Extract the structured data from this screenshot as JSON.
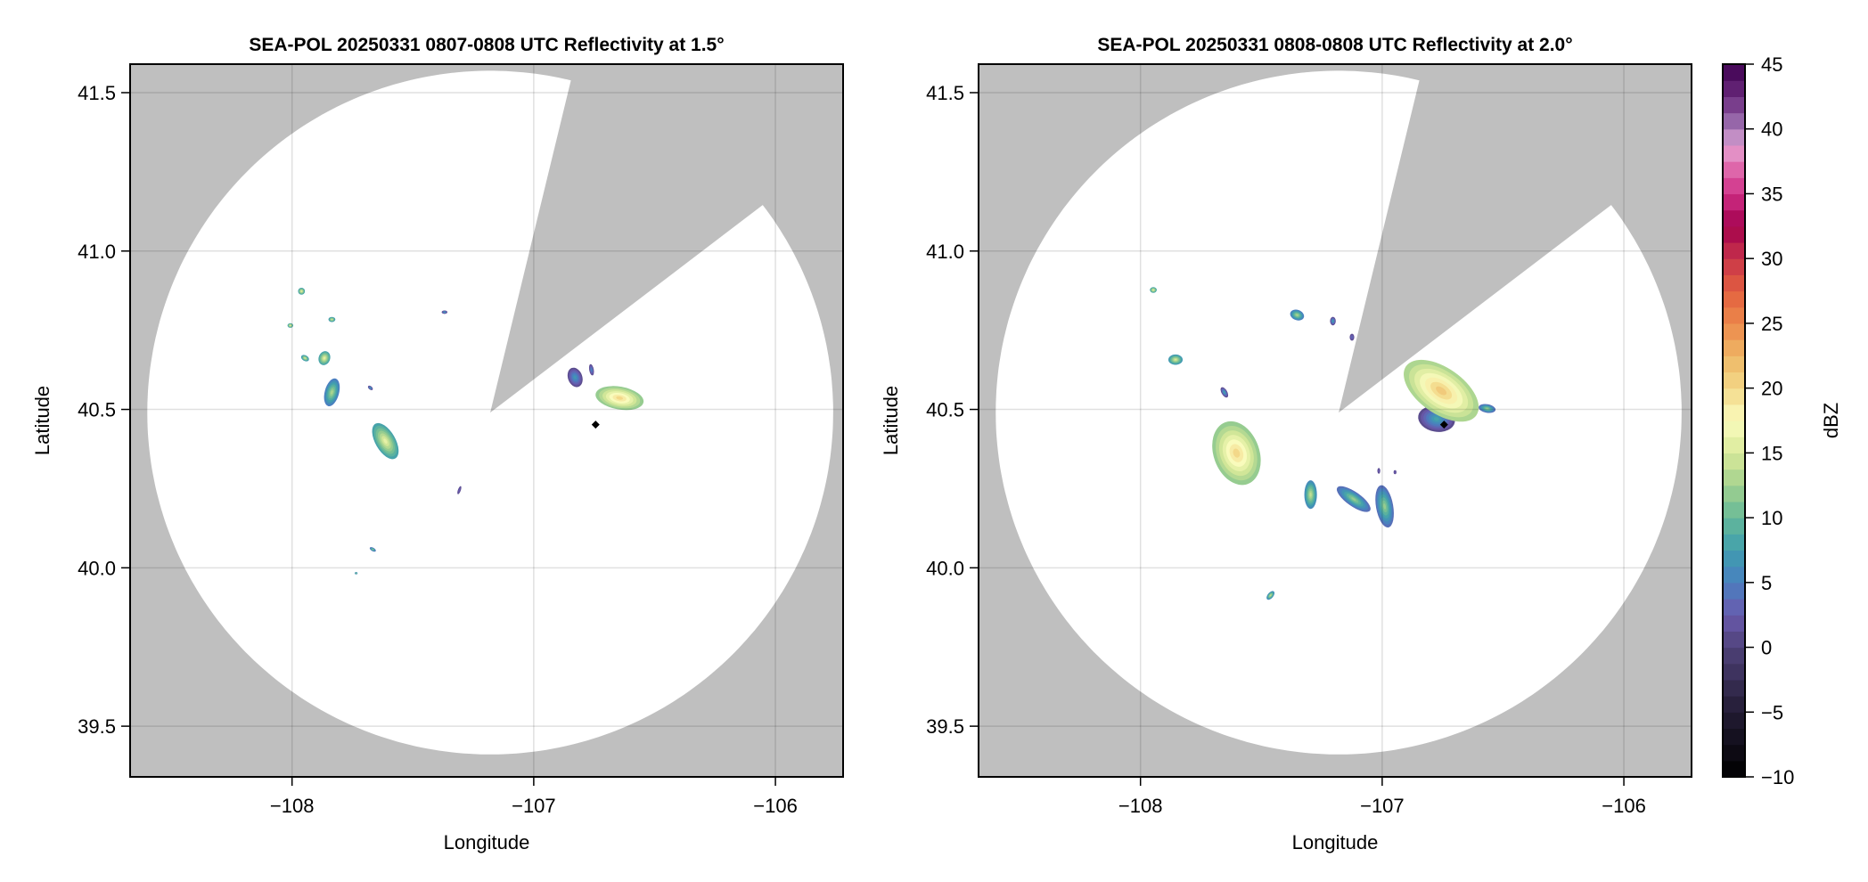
{
  "colors": {
    "no_coverage": "#bfbfbf",
    "coverage": "#ffffff",
    "grid": "#000000",
    "marker": "#000000"
  },
  "colormap": {
    "label": "dBZ",
    "range": [
      -10,
      45
    ],
    "ticks": [
      -10,
      -5,
      0,
      5,
      10,
      15,
      20,
      25,
      30,
      35,
      40,
      45
    ],
    "tick_labels": [
      "−10",
      "−5",
      "0",
      "5",
      "10",
      "15",
      "20",
      "25",
      "30",
      "35",
      "40",
      "45"
    ],
    "stops": [
      [
        -10,
        "#000000"
      ],
      [
        -5,
        "#221b33"
      ],
      [
        0,
        "#4f4279"
      ],
      [
        2.5,
        "#6a5aad"
      ],
      [
        5,
        "#4a7fc0"
      ],
      [
        7.5,
        "#3f9eae"
      ],
      [
        10,
        "#66b998"
      ],
      [
        12.5,
        "#a2d18e"
      ],
      [
        15,
        "#d8e99a"
      ],
      [
        17.5,
        "#fbfcbe"
      ],
      [
        20,
        "#f3d889"
      ],
      [
        22.5,
        "#eeb665"
      ],
      [
        25,
        "#ec894b"
      ],
      [
        27.5,
        "#e2603f"
      ],
      [
        30,
        "#c8344a"
      ],
      [
        32.5,
        "#a2004d"
      ],
      [
        35,
        "#cf2f86"
      ],
      [
        37.5,
        "#e378b6"
      ],
      [
        38.7,
        "#e3a4d2"
      ],
      [
        40,
        "#a47ab8"
      ],
      [
        42.5,
        "#6b2a7d"
      ],
      [
        45,
        "#3f0051"
      ]
    ]
  },
  "chart_data": [
    {
      "type": "heatmap",
      "title": "SEA-POL 20250331 0807-0808 UTC Reflectivity at 1.5°",
      "xlabel": "Longitude",
      "ylabel": "Latitude",
      "xlim": [
        -108.67,
        -105.72
      ],
      "ylim": [
        39.34,
        41.59
      ],
      "xticks": [
        -108,
        -107,
        -106
      ],
      "xtick_labels": [
        "−108",
        "−107",
        "−106"
      ],
      "yticks": [
        39.5,
        40.0,
        40.5,
        41.0,
        41.5
      ],
      "ytick_labels": [
        "39.5",
        "40.0",
        "40.5",
        "41.0",
        "41.5"
      ],
      "grid": true,
      "radar": {
        "lon": -107.18,
        "lat": 40.49,
        "range_km": 120,
        "blocked_azimuth_deg": [
          13.7,
          52.6
        ]
      },
      "marker": {
        "lon": -106.744,
        "lat": 40.452,
        "shape": "diamond"
      },
      "echoes": [
        {
          "lon": -106.645,
          "lat": 40.536,
          "a_km": 8.5,
          "b_km": 4,
          "bearing_deg": 100,
          "peak_dbz": 20
        },
        {
          "lon": -106.829,
          "lat": 40.601,
          "a_km": 3.5,
          "b_km": 2.5,
          "bearing_deg": 160,
          "peak_dbz": 7
        },
        {
          "lon": -106.761,
          "lat": 40.625,
          "a_km": 2,
          "b_km": 0.8,
          "bearing_deg": 170,
          "peak_dbz": 6
        },
        {
          "lon": -107.614,
          "lat": 40.4,
          "a_km": 7,
          "b_km": 3.5,
          "bearing_deg": 150,
          "peak_dbz": 16
        },
        {
          "lon": -107.835,
          "lat": 40.554,
          "a_km": 5,
          "b_km": 2.5,
          "bearing_deg": 15,
          "peak_dbz": 13
        },
        {
          "lon": -107.866,
          "lat": 40.662,
          "a_km": 2.5,
          "b_km": 2,
          "bearing_deg": 20,
          "peak_dbz": 16
        },
        {
          "lon": -107.946,
          "lat": 40.662,
          "a_km": 1.5,
          "b_km": 1,
          "bearing_deg": 120,
          "peak_dbz": 15
        },
        {
          "lon": -107.961,
          "lat": 40.873,
          "a_km": 1.2,
          "b_km": 1.2,
          "bearing_deg": 0,
          "peak_dbz": 16
        },
        {
          "lon": -107.835,
          "lat": 40.784,
          "a_km": 1.2,
          "b_km": 0.9,
          "bearing_deg": 90,
          "peak_dbz": 15
        },
        {
          "lon": -108.007,
          "lat": 40.765,
          "a_km": 1,
          "b_km": 0.8,
          "bearing_deg": 90,
          "peak_dbz": 16
        },
        {
          "lon": -107.369,
          "lat": 40.807,
          "a_km": 1,
          "b_km": 0.6,
          "bearing_deg": 90,
          "peak_dbz": 8
        },
        {
          "lon": -107.676,
          "lat": 40.568,
          "a_km": 1,
          "b_km": 0.6,
          "bearing_deg": 130,
          "peak_dbz": 8
        },
        {
          "lon": -107.308,
          "lat": 40.245,
          "a_km": 1.5,
          "b_km": 0.5,
          "bearing_deg": 20,
          "peak_dbz": 3
        },
        {
          "lon": -107.666,
          "lat": 40.058,
          "a_km": 1.2,
          "b_km": 0.6,
          "bearing_deg": 120,
          "peak_dbz": 12
        },
        {
          "lon": -107.735,
          "lat": 39.983,
          "a_km": 0.5,
          "b_km": 0.4,
          "bearing_deg": 90,
          "peak_dbz": 13
        }
      ]
    },
    {
      "type": "heatmap",
      "title": "SEA-POL 20250331 0808-0808 UTC Reflectivity at 2.0°",
      "xlabel": "Longitude",
      "ylabel": "Latitude",
      "xlim": [
        -108.67,
        -105.72
      ],
      "ylim": [
        39.34,
        41.59
      ],
      "xticks": [
        -108,
        -107,
        -106
      ],
      "xtick_labels": [
        "−108",
        "−107",
        "−106"
      ],
      "yticks": [
        39.5,
        40.0,
        40.5,
        41.0,
        41.5
      ],
      "ytick_labels": [
        "39.5",
        "40.0",
        "40.5",
        "41.0",
        "41.5"
      ],
      "grid": true,
      "radar": {
        "lon": -107.18,
        "lat": 40.49,
        "range_km": 120,
        "blocked_azimuth_deg": [
          13.7,
          52.6
        ]
      },
      "marker": {
        "lon": -106.744,
        "lat": 40.452,
        "shape": "diamond"
      },
      "echoes": [
        {
          "lon": -106.775,
          "lat": 40.47,
          "a_km": 6.5,
          "b_km": 4.5,
          "bearing_deg": 100,
          "peak_dbz": 8
        },
        {
          "lon": -106.756,
          "lat": 40.559,
          "a_km": 15,
          "b_km": 8,
          "bearing_deg": 125,
          "peak_dbz": 21
        },
        {
          "lon": -106.566,
          "lat": 40.503,
          "a_km": 3,
          "b_km": 1.5,
          "bearing_deg": 100,
          "peak_dbz": 12
        },
        {
          "lon": -107.603,
          "lat": 40.362,
          "a_km": 11.5,
          "b_km": 8,
          "bearing_deg": 160,
          "peak_dbz": 20
        },
        {
          "lon": -107.296,
          "lat": 40.231,
          "a_km": 5,
          "b_km": 2.2,
          "bearing_deg": 0,
          "peak_dbz": 14
        },
        {
          "lon": -107.118,
          "lat": 40.217,
          "a_km": 7,
          "b_km": 2.5,
          "bearing_deg": 125,
          "peak_dbz": 12
        },
        {
          "lon": -106.99,
          "lat": 40.194,
          "a_km": 7.5,
          "b_km": 3,
          "bearing_deg": 170,
          "peak_dbz": 12
        },
        {
          "lon": -107.352,
          "lat": 40.798,
          "a_km": 2.5,
          "b_km": 1.8,
          "bearing_deg": 110,
          "peak_dbz": 13
        },
        {
          "lon": -107.855,
          "lat": 40.657,
          "a_km": 2.5,
          "b_km": 1.8,
          "bearing_deg": 90,
          "peak_dbz": 15
        },
        {
          "lon": -107.947,
          "lat": 40.877,
          "a_km": 1.2,
          "b_km": 1,
          "bearing_deg": 90,
          "peak_dbz": 16
        },
        {
          "lon": -107.653,
          "lat": 40.554,
          "a_km": 2,
          "b_km": 1,
          "bearing_deg": 150,
          "peak_dbz": 8
        },
        {
          "lon": -107.204,
          "lat": 40.779,
          "a_km": 1.5,
          "b_km": 1,
          "bearing_deg": 0,
          "peak_dbz": 8
        },
        {
          "lon": -107.125,
          "lat": 40.728,
          "a_km": 1.2,
          "b_km": 0.8,
          "bearing_deg": 0,
          "peak_dbz": 4
        },
        {
          "lon": -107.462,
          "lat": 39.913,
          "a_km": 1.8,
          "b_km": 1,
          "bearing_deg": 40,
          "peak_dbz": 14
        },
        {
          "lon": -107.014,
          "lat": 40.306,
          "a_km": 1,
          "b_km": 0.5,
          "bearing_deg": 0,
          "peak_dbz": 3
        },
        {
          "lon": -106.947,
          "lat": 40.302,
          "a_km": 0.7,
          "b_km": 0.5,
          "bearing_deg": 0,
          "peak_dbz": 3
        }
      ]
    }
  ]
}
